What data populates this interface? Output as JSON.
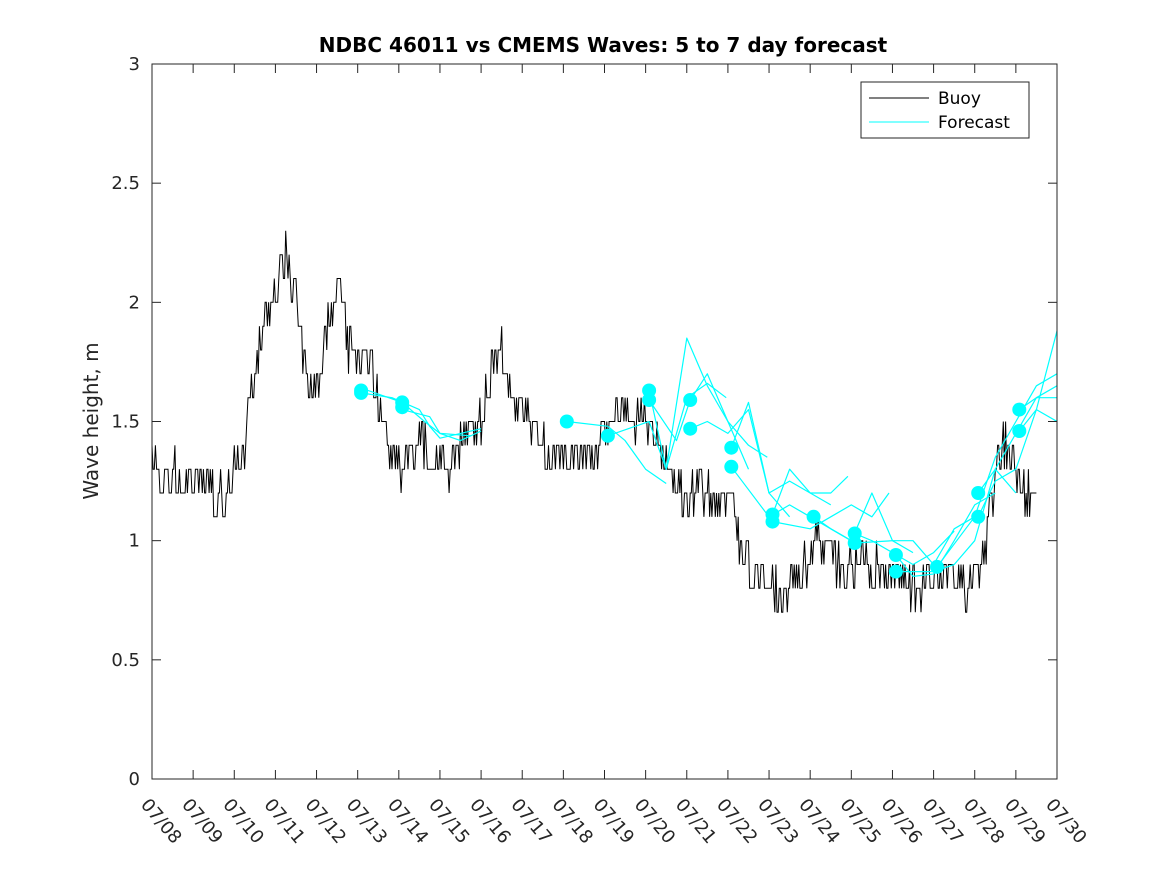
{
  "chart_data": {
    "type": "line",
    "title": "NDBC 46011 vs CMEMS Waves: 5 to 7 day forecast",
    "xlabel": "",
    "ylabel": "Wave height, m",
    "xlim": [
      "07/08",
      "07/30"
    ],
    "ylim": [
      0,
      3
    ],
    "x_tick_labels": [
      "07/08",
      "07/09",
      "07/10",
      "07/11",
      "07/12",
      "07/13",
      "07/14",
      "07/15",
      "07/16",
      "07/17",
      "07/18",
      "07/19",
      "07/20",
      "07/21",
      "07/22",
      "07/23",
      "07/24",
      "07/25",
      "07/26",
      "07/27",
      "07/28",
      "07/29",
      "07/30"
    ],
    "y_tick_labels": [
      "0",
      "0.5",
      "1",
      "1.5",
      "2",
      "2.5",
      "3"
    ],
    "y_ticks": [
      0,
      0.5,
      1,
      1.5,
      2,
      2.5,
      3
    ],
    "grid": false,
    "legend": {
      "placement": "top-right",
      "entries": [
        {
          "label": "Buoy",
          "color": "#000000"
        },
        {
          "label": "Forecast",
          "color": "#00ffff"
        }
      ]
    },
    "series": [
      {
        "name": "Buoy",
        "color": "#000000",
        "points": [
          [
            "07/08 00:00",
            1.4
          ],
          [
            "07/08 06:00",
            1.25
          ],
          [
            "07/08 12:00",
            1.3
          ],
          [
            "07/08 18:00",
            1.2
          ],
          [
            "07/09 00:00",
            1.25
          ],
          [
            "07/09 06:00",
            1.3
          ],
          [
            "07/09 12:00",
            1.2
          ],
          [
            "07/09 18:00",
            1.15
          ],
          [
            "07/10 00:00",
            1.3
          ],
          [
            "07/10 06:00",
            1.4
          ],
          [
            "07/10 12:00",
            1.7
          ],
          [
            "07/10 18:00",
            1.95
          ],
          [
            "07/11 00:00",
            2.0
          ],
          [
            "07/11 06:00",
            2.2
          ],
          [
            "07/11 12:00",
            2.05
          ],
          [
            "07/11 18:00",
            1.7
          ],
          [
            "07/12 00:00",
            1.6
          ],
          [
            "07/12 06:00",
            1.85
          ],
          [
            "07/12 12:00",
            2.1
          ],
          [
            "07/12 18:00",
            1.85
          ],
          [
            "07/13 00:00",
            1.75
          ],
          [
            "07/13 06:00",
            1.8
          ],
          [
            "07/13 12:00",
            1.6
          ],
          [
            "07/13 18:00",
            1.4
          ],
          [
            "07/14 00:00",
            1.3
          ],
          [
            "07/14 06:00",
            1.35
          ],
          [
            "07/14 12:00",
            1.45
          ],
          [
            "07/14 18:00",
            1.3
          ],
          [
            "07/15 00:00",
            1.35
          ],
          [
            "07/15 06:00",
            1.3
          ],
          [
            "07/15 12:00",
            1.4
          ],
          [
            "07/15 18:00",
            1.5
          ],
          [
            "07/16 00:00",
            1.5
          ],
          [
            "07/16 06:00",
            1.7
          ],
          [
            "07/16 12:00",
            1.8
          ],
          [
            "07/16 18:00",
            1.6
          ],
          [
            "07/17 00:00",
            1.55
          ],
          [
            "07/17 06:00",
            1.5
          ],
          [
            "07/17 12:00",
            1.4
          ],
          [
            "07/17 18:00",
            1.35
          ],
          [
            "07/18 00:00",
            1.35
          ],
          [
            "07/18 06:00",
            1.4
          ],
          [
            "07/18 12:00",
            1.35
          ],
          [
            "07/18 18:00",
            1.35
          ],
          [
            "07/19 00:00",
            1.45
          ],
          [
            "07/19 06:00",
            1.5
          ],
          [
            "07/19 12:00",
            1.55
          ],
          [
            "07/19 18:00",
            1.5
          ],
          [
            "07/20 00:00",
            1.55
          ],
          [
            "07/20 06:00",
            1.45
          ],
          [
            "07/20 12:00",
            1.3
          ],
          [
            "07/20 18:00",
            1.25
          ],
          [
            "07/21 00:00",
            1.15
          ],
          [
            "07/21 06:00",
            1.25
          ],
          [
            "07/21 12:00",
            1.2
          ],
          [
            "07/21 18:00",
            1.1
          ],
          [
            "07/22 00:00",
            1.2
          ],
          [
            "07/22 06:00",
            1.0
          ],
          [
            "07/22 12:00",
            0.9
          ],
          [
            "07/22 18:00",
            0.85
          ],
          [
            "07/23 00:00",
            0.8
          ],
          [
            "07/23 06:00",
            0.75
          ],
          [
            "07/23 12:00",
            0.8
          ],
          [
            "07/23 18:00",
            0.9
          ],
          [
            "07/24 00:00",
            0.95
          ],
          [
            "07/24 06:00",
            1.0
          ],
          [
            "07/24 12:00",
            0.95
          ],
          [
            "07/24 18:00",
            0.9
          ],
          [
            "07/25 00:00",
            0.9
          ],
          [
            "07/25 06:00",
            0.95
          ],
          [
            "07/25 12:00",
            0.9
          ],
          [
            "07/25 18:00",
            0.9
          ],
          [
            "07/26 00:00",
            0.85
          ],
          [
            "07/26 06:00",
            0.85
          ],
          [
            "07/26 12:00",
            0.8
          ],
          [
            "07/26 18:00",
            0.8
          ],
          [
            "07/27 00:00",
            0.85
          ],
          [
            "07/27 06:00",
            0.85
          ],
          [
            "07/27 12:00",
            0.85
          ],
          [
            "07/27 18:00",
            0.8
          ],
          [
            "07/28 00:00",
            0.85
          ],
          [
            "07/28 06:00",
            1.0
          ],
          [
            "07/28 12:00",
            1.3
          ],
          [
            "07/28 18:00",
            1.4
          ],
          [
            "07/29 00:00",
            1.3
          ],
          [
            "07/29 06:00",
            1.2
          ],
          [
            "07/29 12:00",
            1.2
          ]
        ]
      },
      {
        "name": "Forecast",
        "color": "#00ffff",
        "segments": [
          [
            [
              "07/13 02:00",
              1.62
            ],
            [
              "07/13 20:00",
              1.6
            ],
            [
              "07/14 12:00",
              1.55
            ],
            [
              "07/14 18:00",
              1.48
            ],
            [
              "07/15 00:00",
              1.43
            ],
            [
              "07/15 12:00",
              1.45
            ],
            [
              "07/16 00:00",
              1.47
            ]
          ],
          [
            [
              "07/13 02:00",
              1.64
            ],
            [
              "07/14 02:00",
              1.58
            ],
            [
              "07/14 15:00",
              1.5
            ],
            [
              "07/15 00:00",
              1.45
            ],
            [
              "07/15 12:00",
              1.42
            ],
            [
              "07/16 00:00",
              1.46
            ]
          ],
          [
            [
              "07/14 02:00",
              1.55
            ],
            [
              "07/14 18:00",
              1.52
            ],
            [
              "07/15 00:00",
              1.45
            ],
            [
              "07/15 18:00",
              1.44
            ]
          ],
          [
            [
              "07/18 02:00",
              1.5
            ],
            [
              "07/19 02:00",
              1.48
            ],
            [
              "07/19 12:00",
              1.42
            ],
            [
              "07/20 00:00",
              1.3
            ],
            [
              "07/20 12:00",
              1.24
            ]
          ],
          [
            [
              "07/19 02:00",
              1.44
            ],
            [
              "07/20 02:00",
              1.5
            ],
            [
              "07/20 12:00",
              1.3
            ],
            [
              "07/21 00:00",
              1.6
            ],
            [
              "07/21 12:00",
              1.66
            ],
            [
              "07/21 23:00",
              1.6
            ]
          ],
          [
            [
              "07/20 02:00",
              1.63
            ],
            [
              "07/20 12:00",
              1.3
            ],
            [
              "07/21 00:00",
              1.85
            ],
            [
              "07/21 12:00",
              1.65
            ],
            [
              "07/22 00:00",
              1.5
            ],
            [
              "07/22 12:00",
              1.3
            ]
          ],
          [
            [
              "07/20 02:00",
              1.59
            ],
            [
              "07/20 18:00",
              1.42
            ],
            [
              "07/21 02:00",
              1.59
            ],
            [
              "07/21 12:00",
              1.7
            ],
            [
              "07/22 00:00",
              1.5
            ],
            [
              "07/22 12:00",
              1.4
            ],
            [
              "07/22 23:00",
              1.35
            ]
          ],
          [
            [
              "07/21 02:00",
              1.47
            ],
            [
              "07/21 12:00",
              1.5
            ],
            [
              "07/22 00:00",
              1.45
            ],
            [
              "07/22 12:00",
              1.55
            ],
            [
              "07/23 00:00",
              1.2
            ],
            [
              "07/23 12:00",
              1.1
            ]
          ],
          [
            [
              "07/22 02:00",
              1.39
            ],
            [
              "07/22 12:00",
              1.58
            ],
            [
              "07/23 00:00",
              1.2
            ],
            [
              "07/23 12:00",
              1.25
            ],
            [
              "07/24 00:00",
              1.2
            ],
            [
              "07/24 12:00",
              1.15
            ]
          ],
          [
            [
              "07/22 02:00",
              1.31
            ],
            [
              "07/23 00:00",
              1.1
            ],
            [
              "07/23 12:00",
              1.15
            ],
            [
              "07/24 00:00",
              1.1
            ],
            [
              "07/24 12:00",
              1.05
            ],
            [
              "07/25 00:00",
              1.0
            ]
          ],
          [
            [
              "07/23 02:00",
              1.11
            ],
            [
              "07/23 12:00",
              1.3
            ],
            [
              "07/24 00:00",
              1.2
            ],
            [
              "07/24 12:00",
              1.2
            ],
            [
              "07/24 22:00",
              1.27
            ]
          ],
          [
            [
              "07/23 02:00",
              1.08
            ],
            [
              "07/24 00:00",
              1.05
            ],
            [
              "07/24 12:00",
              1.1
            ],
            [
              "07/25 00:00",
              1.15
            ],
            [
              "07/25 12:00",
              1.1
            ],
            [
              "07/25 22:00",
              1.2
            ]
          ],
          [
            [
              "07/24 02:00",
              1.1
            ],
            [
              "07/24 12:00",
              1.05
            ],
            [
              "07/25 00:00",
              1.0
            ],
            [
              "07/25 12:00",
              1.2
            ],
            [
              "07/26 00:00",
              1.0
            ],
            [
              "07/26 12:00",
              0.95
            ]
          ],
          [
            [
              "07/25 02:00",
              1.03
            ],
            [
              "07/25 12:00",
              1.0
            ],
            [
              "07/26 00:00",
              0.95
            ],
            [
              "07/26 12:00",
              0.9
            ],
            [
              "07/27 00:00",
              0.95
            ],
            [
              "07/27 12:00",
              1.04
            ]
          ],
          [
            [
              "07/25 02:00",
              0.99
            ],
            [
              "07/26 00:00",
              1.0
            ],
            [
              "07/26 12:00",
              1.0
            ],
            [
              "07/27 00:00",
              0.9
            ],
            [
              "07/27 12:00",
              1.05
            ],
            [
              "07/28 00:00",
              1.1
            ]
          ],
          [
            [
              "07/26 02:00",
              0.94
            ],
            [
              "07/26 12:00",
              0.85
            ],
            [
              "07/27 00:00",
              0.86
            ],
            [
              "07/27 12:00",
              1.0
            ],
            [
              "07/28 00:00",
              1.15
            ],
            [
              "07/28 12:00",
              1.2
            ]
          ],
          [
            [
              "07/26 02:00",
              0.87
            ],
            [
              "07/27 00:00",
              0.87
            ],
            [
              "07/27 12:00",
              0.9
            ],
            [
              "07/28 00:00",
              1.0
            ],
            [
              "07/28 12:00",
              1.3
            ],
            [
              "07/29 00:00",
              1.2
            ]
          ],
          [
            [
              "07/27 02:00",
              0.89
            ],
            [
              "07/28 00:00",
              1.1
            ],
            [
              "07/28 12:00",
              1.35
            ],
            [
              "07/29 00:00",
              1.5
            ],
            [
              "07/29 12:00",
              1.65
            ],
            [
              "07/30 00:00",
              1.7
            ]
          ],
          [
            [
              "07/28 02:00",
              1.2
            ],
            [
              "07/28 12:00",
              1.3
            ],
            [
              "07/29 00:00",
              1.45
            ],
            [
              "07/29 12:00",
              1.6
            ],
            [
              "07/30 00:00",
              1.6
            ]
          ],
          [
            [
              "07/28 02:00",
              1.1
            ],
            [
              "07/28 12:00",
              1.25
            ],
            [
              "07/29 00:00",
              1.3
            ],
            [
              "07/29 12:00",
              1.55
            ],
            [
              "07/30 00:00",
              1.88
            ]
          ],
          [
            [
              "07/29 02:00",
              1.55
            ],
            [
              "07/29 12:00",
              1.6
            ],
            [
              "07/30 00:00",
              1.65
            ]
          ],
          [
            [
              "07/29 02:00",
              1.46
            ],
            [
              "07/29 12:00",
              1.55
            ],
            [
              "07/30 00:00",
              1.5
            ]
          ]
        ],
        "markers": [
          [
            "07/13 02:00",
            1.62
          ],
          [
            "07/13 02:00",
            1.63
          ],
          [
            "07/14 02:00",
            1.58
          ],
          [
            "07/14 02:00",
            1.56
          ],
          [
            "07/18 02:00",
            1.5
          ],
          [
            "07/19 02:00",
            1.44
          ],
          [
            "07/20 02:00",
            1.63
          ],
          [
            "07/20 02:00",
            1.59
          ],
          [
            "07/21 02:00",
            1.59
          ],
          [
            "07/21 02:00",
            1.47
          ],
          [
            "07/22 02:00",
            1.39
          ],
          [
            "07/22 02:00",
            1.31
          ],
          [
            "07/23 02:00",
            1.11
          ],
          [
            "07/23 02:00",
            1.08
          ],
          [
            "07/24 02:00",
            1.1
          ],
          [
            "07/25 02:00",
            1.03
          ],
          [
            "07/25 02:00",
            0.99
          ],
          [
            "07/26 02:00",
            0.94
          ],
          [
            "07/26 02:00",
            0.87
          ],
          [
            "07/27 02:00",
            0.89
          ],
          [
            "07/28 02:00",
            1.2
          ],
          [
            "07/28 02:00",
            1.1
          ],
          [
            "07/29 02:00",
            1.55
          ],
          [
            "07/29 02:00",
            1.46
          ]
        ]
      }
    ]
  }
}
